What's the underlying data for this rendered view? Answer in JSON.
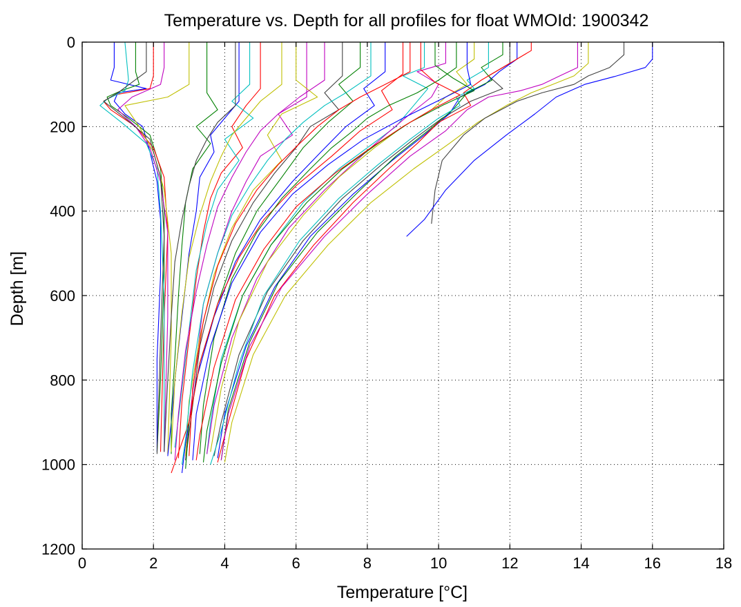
{
  "chart_data": {
    "type": "line",
    "title": "Temperature vs. Depth for all profiles for float WMOId: 1900342",
    "xlabel": "Temperature [°C]",
    "ylabel": "Depth [m]",
    "xlim": [
      0,
      18
    ],
    "ylim": [
      0,
      1200
    ],
    "y_inverted": true,
    "grid": "dotted",
    "x_ticks": [
      0,
      2,
      4,
      6,
      8,
      10,
      12,
      14,
      16,
      18
    ],
    "y_ticks": [
      0,
      200,
      400,
      600,
      800,
      1000,
      1200
    ],
    "series_colors": [
      "#0000ff",
      "#008000",
      "#ff0000",
      "#00bfbf",
      "#bf00bf",
      "#bfbf00",
      "#404040"
    ],
    "series": [
      {
        "depth": [
          0,
          60,
          90,
          110,
          120,
          140,
          170,
          200,
          260,
          330,
          420,
          550,
          750,
          970
        ],
        "temperature": [
          0.9,
          0.9,
          0.8,
          1.8,
          1.0,
          0.9,
          1.2,
          1.7,
          1.9,
          2.1,
          2.2,
          2.2,
          2.1,
          2.1
        ]
      },
      {
        "depth": [
          0,
          70,
          100,
          115,
          130,
          150,
          180,
          220,
          300,
          400,
          550,
          800,
          970
        ],
        "temperature": [
          1.5,
          1.5,
          1.6,
          1.1,
          0.7,
          0.8,
          1.3,
          1.9,
          2.2,
          2.3,
          2.3,
          2.2,
          2.1
        ]
      },
      {
        "depth": [
          0,
          80,
          110,
          125,
          140,
          160,
          200,
          250,
          320,
          450,
          650,
          970
        ],
        "temperature": [
          2.0,
          2.0,
          1.9,
          0.9,
          0.6,
          0.8,
          1.5,
          2.0,
          2.3,
          2.4,
          2.3,
          2.2
        ]
      },
      {
        "depth": [
          0,
          90,
          115,
          135,
          150,
          190,
          240,
          300,
          400,
          600,
          970
        ],
        "temperature": [
          1.2,
          1.3,
          1.2,
          0.7,
          0.5,
          1.1,
          1.8,
          2.1,
          2.2,
          2.3,
          2.3
        ]
      },
      {
        "depth": [
          0,
          60,
          100,
          130,
          160,
          200,
          250,
          330,
          450,
          650,
          970
        ],
        "temperature": [
          2.3,
          2.3,
          2.2,
          1.4,
          1.0,
          1.5,
          1.9,
          2.2,
          2.4,
          2.4,
          2.3
        ]
      },
      {
        "depth": [
          0,
          100,
          130,
          150,
          200,
          260,
          350,
          500,
          700,
          975
        ],
        "temperature": [
          3.0,
          3.0,
          2.4,
          1.2,
          1.6,
          2.0,
          2.3,
          2.5,
          2.5,
          2.4
        ]
      },
      {
        "depth": [
          0,
          70,
          120,
          140,
          180,
          230,
          320,
          460,
          700,
          975
        ],
        "temperature": [
          1.8,
          1.8,
          1.0,
          0.6,
          1.2,
          1.9,
          2.2,
          2.3,
          2.2,
          2.1
        ]
      },
      {
        "depth": [
          0,
          140,
          180,
          220,
          260,
          320,
          400,
          500,
          650,
          800,
          900,
          980
        ],
        "temperature": [
          4.4,
          4.4,
          4.0,
          3.6,
          3.7,
          3.3,
          3.2,
          3.0,
          2.8,
          2.6,
          2.5,
          2.4
        ]
      },
      {
        "depth": [
          0,
          120,
          160,
          200,
          240,
          300,
          380,
          480,
          600,
          750,
          880,
          975
        ],
        "temperature": [
          3.5,
          3.5,
          3.8,
          3.2,
          3.6,
          3.1,
          2.9,
          2.8,
          2.7,
          2.6,
          2.5,
          2.5
        ]
      },
      {
        "depth": [
          0,
          110,
          150,
          200,
          250,
          310,
          370,
          450,
          560,
          700,
          850,
          985
        ],
        "temperature": [
          5.0,
          5.0,
          4.6,
          4.2,
          4.5,
          3.9,
          3.6,
          3.4,
          3.2,
          3.0,
          2.8,
          2.7
        ]
      },
      {
        "depth": [
          0,
          100,
          140,
          180,
          230,
          280,
          350,
          430,
          540,
          680,
          820,
          960
        ],
        "temperature": [
          4.7,
          4.7,
          4.2,
          4.8,
          4.0,
          4.4,
          3.8,
          3.5,
          3.2,
          3.0,
          2.8,
          2.6
        ]
      },
      {
        "depth": [
          0,
          130,
          170,
          220,
          270,
          330,
          400,
          500,
          620,
          760,
          900,
          990
        ],
        "temperature": [
          6.3,
          6.3,
          5.5,
          5.9,
          5.0,
          4.6,
          4.2,
          3.8,
          3.4,
          3.2,
          3.0,
          2.9
        ]
      },
      {
        "depth": [
          0,
          90,
          130,
          170,
          220,
          280,
          350,
          440,
          550,
          700,
          850,
          980
        ],
        "temperature": [
          6.0,
          6.0,
          6.6,
          5.6,
          5.2,
          5.6,
          4.8,
          4.2,
          3.7,
          3.3,
          3.0,
          2.9
        ]
      },
      {
        "depth": [
          0,
          80,
          120,
          160,
          200,
          250,
          310,
          380,
          470,
          580,
          720,
          860,
          990
        ],
        "temperature": [
          7.3,
          7.3,
          6.8,
          7.2,
          6.4,
          6.0,
          5.4,
          4.8,
          4.2,
          3.7,
          3.3,
          3.1,
          2.9
        ]
      },
      {
        "depth": [
          0,
          70,
          110,
          150,
          200,
          260,
          330,
          420,
          520,
          650,
          800,
          950,
          1020
        ],
        "temperature": [
          8.5,
          8.5,
          7.9,
          8.2,
          7.4,
          6.7,
          5.9,
          5.0,
          4.3,
          3.7,
          3.2,
          2.9,
          2.8
        ]
      },
      {
        "depth": [
          0,
          60,
          100,
          140,
          190,
          250,
          320,
          400,
          500,
          620,
          760,
          900,
          1010
        ],
        "temperature": [
          7.8,
          7.8,
          7.2,
          7.6,
          6.9,
          6.2,
          5.6,
          4.9,
          4.3,
          3.8,
          3.3,
          3.0,
          2.9
        ]
      },
      {
        "depth": [
          0,
          75,
          115,
          160,
          210,
          270,
          340,
          420,
          510,
          620,
          760,
          900,
          1020
        ],
        "temperature": [
          9.0,
          9.0,
          8.4,
          8.7,
          7.8,
          7.0,
          6.0,
          5.1,
          4.4,
          3.8,
          3.3,
          3.0,
          2.5
        ]
      },
      {
        "depth": [
          0,
          60,
          80,
          110,
          150,
          200,
          250,
          300,
          380,
          480,
          600,
          750,
          900,
          975
        ],
        "temperature": [
          9.6,
          9.6,
          9.0,
          9.7,
          9.3,
          8.8,
          8.0,
          7.2,
          6.2,
          5.3,
          4.5,
          3.9,
          3.6,
          3.5
        ]
      },
      {
        "depth": [
          0,
          50,
          70,
          100,
          130,
          170,
          220,
          280,
          350,
          440,
          560,
          700,
          860,
          975
        ],
        "temperature": [
          10.2,
          10.2,
          9.4,
          10.0,
          9.8,
          9.2,
          8.5,
          7.7,
          6.8,
          5.8,
          4.9,
          4.2,
          3.7,
          3.5
        ]
      },
      {
        "depth": [
          0,
          40,
          70,
          100,
          130,
          160,
          200,
          250,
          320,
          410,
          520,
          660,
          820,
          970
        ],
        "temperature": [
          11.0,
          11.0,
          10.5,
          10.8,
          10.2,
          9.8,
          9.0,
          8.2,
          7.2,
          6.2,
          5.2,
          4.4,
          3.9,
          3.6
        ]
      },
      {
        "depth": [
          0,
          50,
          80,
          110,
          140,
          180,
          230,
          290,
          370,
          470,
          590,
          740,
          900,
          980
        ],
        "temperature": [
          12.0,
          12.0,
          11.4,
          11.8,
          10.9,
          10.1,
          9.3,
          8.4,
          7.3,
          6.2,
          5.2,
          4.4,
          3.9,
          3.7
        ]
      },
      {
        "depth": [
          0,
          40,
          70,
          100,
          130,
          170,
          220,
          280,
          360,
          460,
          580,
          720,
          880,
          985
        ],
        "temperature": [
          12.2,
          12.2,
          11.7,
          11.3,
          10.6,
          10.3,
          9.6,
          8.7,
          7.6,
          6.4,
          5.4,
          4.6,
          4.0,
          3.8
        ]
      },
      {
        "depth": [
          0,
          30,
          60,
          90,
          120,
          160,
          210,
          270,
          350,
          450,
          570,
          710,
          870,
          990
        ],
        "temperature": [
          11.8,
          11.8,
          11.2,
          11.5,
          10.8,
          10.4,
          9.7,
          8.8,
          7.8,
          6.6,
          5.5,
          4.7,
          4.1,
          3.9
        ]
      },
      {
        "depth": [
          0,
          20,
          50,
          90,
          120,
          150,
          190,
          240,
          300,
          380,
          480,
          600,
          750,
          900,
          995
        ],
        "temperature": [
          12.6,
          12.6,
          12.0,
          11.2,
          10.7,
          10.9,
          10.0,
          9.4,
          8.6,
          7.6,
          6.5,
          5.4,
          4.6,
          4.1,
          3.8
        ]
      },
      {
        "depth": [
          0,
          60,
          90,
          110,
          130,
          150,
          180,
          230,
          290,
          370,
          470,
          600,
          760,
          920,
          1000
        ],
        "temperature": [
          11.4,
          11.4,
          10.8,
          11.0,
          10.5,
          10.6,
          10.0,
          9.2,
          8.3,
          7.2,
          6.1,
          5.1,
          4.4,
          3.9,
          3.6
        ]
      },
      {
        "depth": [
          0,
          60,
          80,
          100,
          115,
          130,
          160,
          210,
          270,
          360,
          460,
          580,
          720,
          880,
          990
        ],
        "temperature": [
          13.9,
          13.9,
          13.4,
          12.9,
          12.3,
          11.4,
          10.8,
          10.2,
          9.2,
          8.0,
          6.8,
          5.6,
          4.7,
          4.1,
          3.9
        ]
      },
      {
        "depth": [
          0,
          50,
          80,
          100,
          120,
          150,
          190,
          240,
          300,
          380,
          480,
          600,
          740,
          900,
          995
        ],
        "temperature": [
          14.2,
          14.2,
          13.8,
          13.2,
          12.6,
          11.9,
          11.1,
          10.3,
          9.3,
          8.1,
          6.9,
          5.7,
          4.8,
          4.2,
          4.0
        ]
      },
      {
        "depth": [
          0,
          30,
          60,
          80,
          100,
          120,
          140,
          180,
          220,
          280,
          350,
          430
        ],
        "temperature": [
          15.2,
          15.2,
          14.8,
          14.2,
          13.8,
          12.9,
          12.2,
          11.3,
          10.7,
          10.1,
          9.9,
          9.8
        ]
      },
      {
        "depth": [
          0,
          40,
          60,
          80,
          100,
          130,
          170,
          220,
          280,
          350,
          420,
          460
        ],
        "temperature": [
          16.0,
          16.0,
          15.8,
          15.0,
          14.1,
          13.3,
          12.7,
          11.9,
          11.0,
          10.2,
          9.6,
          9.1
        ]
      },
      {
        "depth": [
          0,
          60,
          90,
          120,
          150,
          180,
          210,
          250,
          300,
          370,
          450,
          560,
          700,
          860,
          975
        ],
        "temperature": [
          10.5,
          10.5,
          10.0,
          9.4,
          8.6,
          8.0,
          7.6,
          7.0,
          6.4,
          5.6,
          4.9,
          4.2,
          3.7,
          3.4,
          3.3
        ]
      },
      {
        "depth": [
          0,
          70,
          100,
          130,
          160,
          200,
          240,
          290,
          350,
          430,
          530,
          660,
          820,
          980
        ],
        "temperature": [
          9.2,
          9.2,
          8.5,
          7.8,
          7.2,
          6.6,
          6.1,
          5.5,
          4.9,
          4.3,
          3.8,
          3.4,
          3.1,
          3.0
        ]
      },
      {
        "depth": [
          0,
          80,
          120,
          150,
          190,
          230,
          280,
          340,
          410,
          500,
          620,
          780,
          940,
          1000
        ],
        "temperature": [
          8.1,
          8.1,
          7.4,
          6.8,
          6.2,
          5.7,
          5.2,
          4.7,
          4.2,
          3.8,
          3.4,
          3.1,
          2.9,
          2.8
        ]
      },
      {
        "depth": [
          0,
          90,
          130,
          170,
          210,
          260,
          320,
          390,
          480,
          590,
          730,
          880,
          990
        ],
        "temperature": [
          6.8,
          6.8,
          6.1,
          5.5,
          5.0,
          4.6,
          4.2,
          3.8,
          3.5,
          3.2,
          2.9,
          2.7,
          2.6
        ]
      },
      {
        "depth": [
          0,
          100,
          140,
          180,
          220,
          270,
          330,
          410,
          510,
          640,
          800,
          970
        ],
        "temperature": [
          5.6,
          5.6,
          5.0,
          4.6,
          4.2,
          3.9,
          3.6,
          3.3,
          3.0,
          2.8,
          2.6,
          2.5
        ]
      },
      {
        "depth": [
          0,
          150,
          190,
          230,
          280,
          340,
          420,
          520,
          650,
          800,
          970
        ],
        "temperature": [
          4.3,
          4.3,
          3.8,
          3.5,
          3.2,
          3.0,
          2.8,
          2.6,
          2.5,
          2.4,
          2.3
        ]
      },
      {
        "depth": [
          0,
          60,
          100,
          130,
          180,
          230,
          290,
          360,
          450,
          570,
          720,
          880,
          990
        ],
        "temperature": [
          10.8,
          10.8,
          10.9,
          10.2,
          9.0,
          7.9,
          6.9,
          5.9,
          5.0,
          4.2,
          3.6,
          3.2,
          3.1
        ]
      },
      {
        "depth": [
          0,
          55,
          85,
          115,
          150,
          190,
          240,
          300,
          380,
          480,
          600,
          760,
          920,
          995
        ],
        "temperature": [
          9.9,
          9.9,
          10.4,
          11.0,
          10.1,
          9.2,
          8.3,
          7.3,
          6.3,
          5.3,
          4.5,
          3.9,
          3.5,
          3.4
        ]
      },
      {
        "depth": [
          0,
          65,
          95,
          125,
          160,
          200,
          250,
          310,
          390,
          490,
          610,
          770,
          930,
          990
        ],
        "temperature": [
          9.5,
          9.5,
          9.9,
          10.6,
          9.8,
          9.0,
          8.1,
          7.1,
          6.0,
          5.1,
          4.3,
          3.7,
          3.3,
          3.2
        ]
      }
    ]
  }
}
